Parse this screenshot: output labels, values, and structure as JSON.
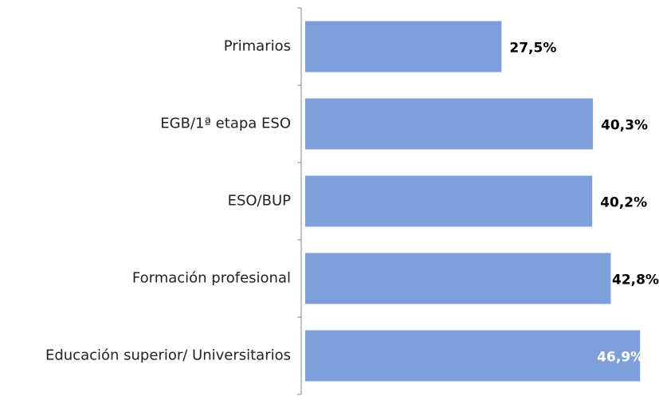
{
  "chart_data": {
    "type": "bar",
    "orientation": "horizontal",
    "categories": [
      "Primarios",
      "EGB/1ª etapa ESO",
      "ESO/BUP",
      "Formación profesional",
      "Educación superior/ Universitarios"
    ],
    "values": [
      27.5,
      40.3,
      40.2,
      42.8,
      46.9
    ],
    "value_labels": [
      "27,5%",
      "40,3%",
      "40,2%",
      "42,8%",
      "46,9%"
    ],
    "value_label_colors": [
      "#000000",
      "#000000",
      "#000000",
      "#000000",
      "#ffffff"
    ],
    "color": "#7f9fdc"
  }
}
